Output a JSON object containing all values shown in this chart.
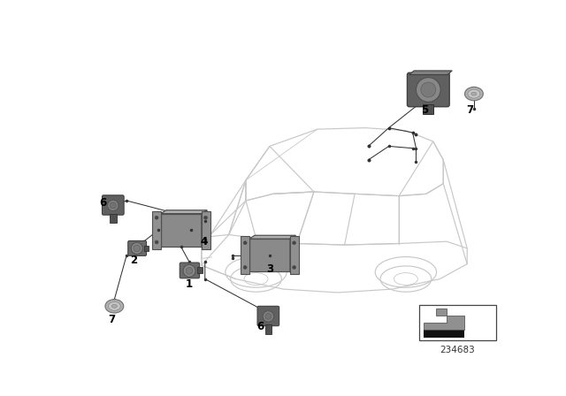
{
  "bg_color": "#ffffff",
  "car_color": "#c8c8c8",
  "part_gray": "#7a7a7a",
  "part_mid": "#909090",
  "part_light": "#b0b0b0",
  "part_dark": "#505050",
  "line_color": "#333333",
  "diagram_id": "234683",
  "label_fontsize": 8.5
}
